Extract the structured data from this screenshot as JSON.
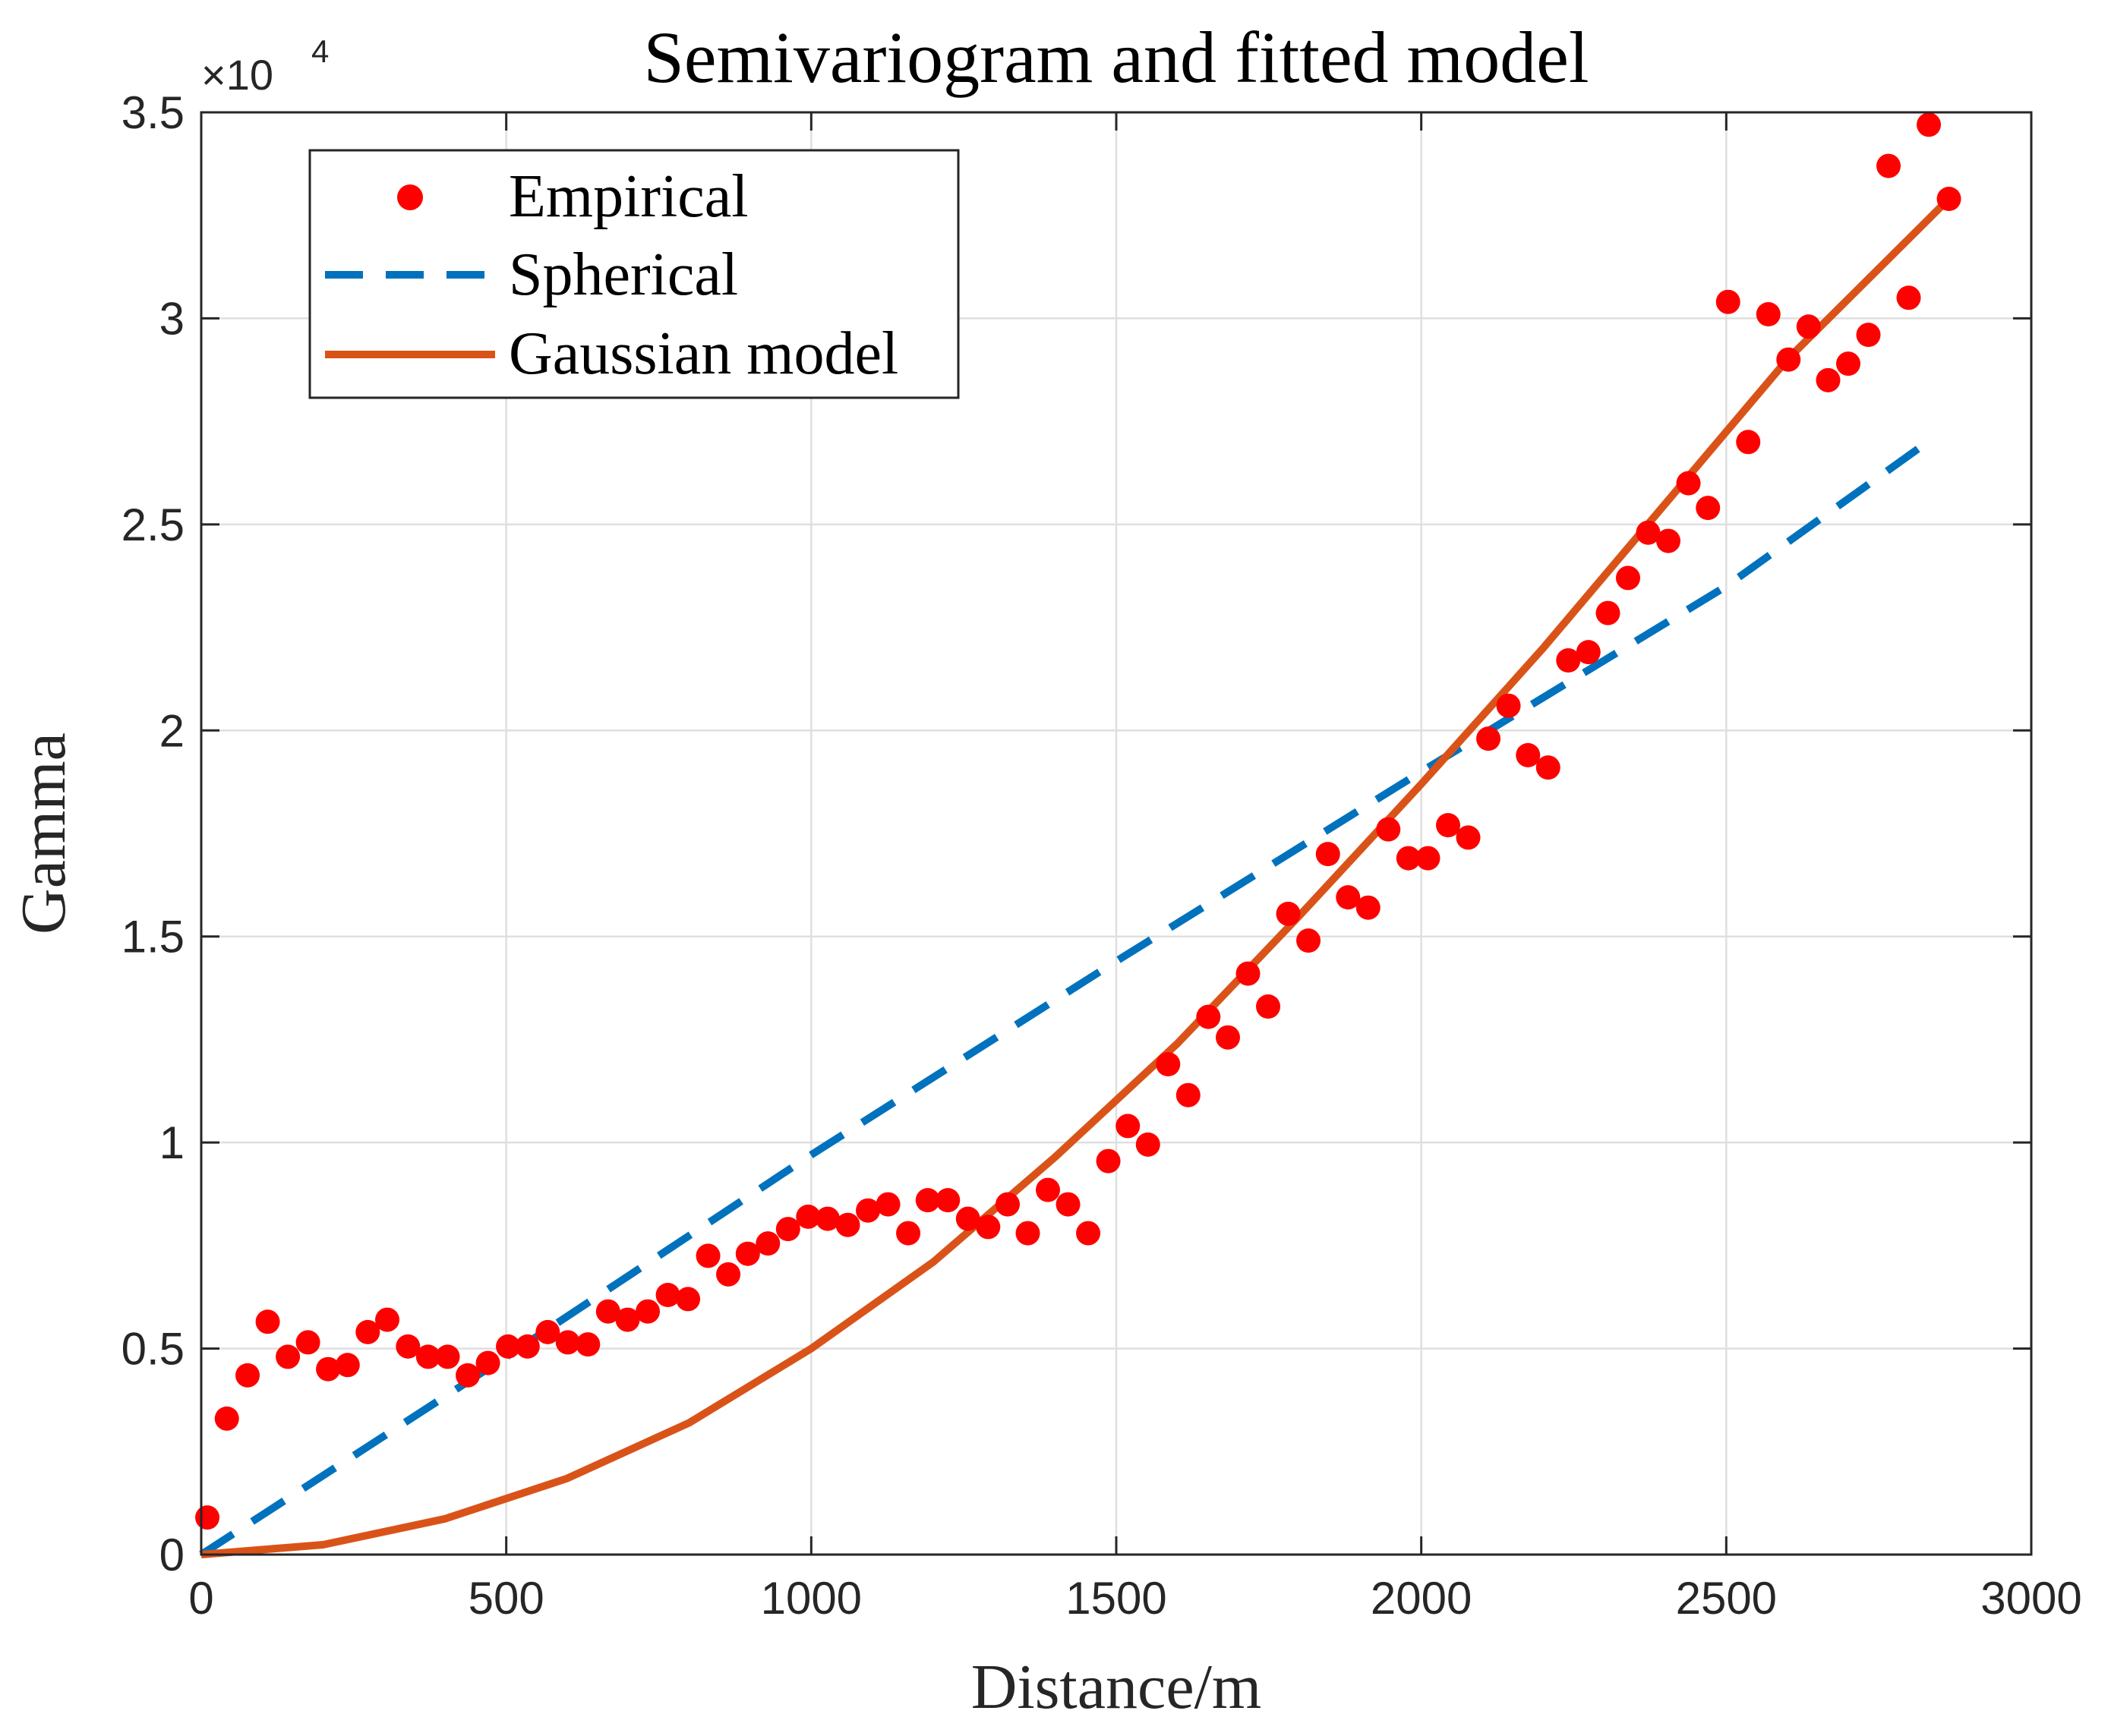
{
  "chart_data": {
    "type": "scatter",
    "title": "Semivariogram and fitted model",
    "xlabel": "Distance/m",
    "ylabel": "Gamma",
    "xlim": [
      0,
      3000
    ],
    "ylim": [
      0,
      35000
    ],
    "grid": true,
    "legend_position": "top-left",
    "y_exponent_label": {
      "base": "×10",
      "exponent": "4"
    },
    "x_ticks": [
      0,
      500,
      1000,
      1500,
      2000,
      2500,
      3000
    ],
    "x_tick_labels": [
      "0",
      "500",
      "1000",
      "1500",
      "2000",
      "2500",
      "3000"
    ],
    "y_ticks": [
      0,
      5000,
      10000,
      15000,
      20000,
      25000,
      30000,
      35000
    ],
    "y_tick_labels": [
      "0",
      "0.5",
      "1",
      "1.5",
      "2",
      "2.5",
      "3",
      "3.5"
    ],
    "colors": {
      "empirical": "#ff0000",
      "spherical": "#0072bd",
      "gaussian": "#d95319"
    },
    "series": [
      {
        "name": "Empirical",
        "style": "markers",
        "x": [
          10,
          42,
          76,
          109,
          142,
          175,
          208,
          240,
          273,
          305,
          339,
          372,
          404,
          437,
          470,
          503,
          535,
          568,
          601,
          634,
          667,
          699,
          732,
          765,
          798,
          831,
          864,
          896,
          929,
          962,
          995,
          1027,
          1060,
          1093,
          1126,
          1159,
          1191,
          1224,
          1257,
          1290,
          1322,
          1355,
          1388,
          1421,
          1454,
          1487,
          1519,
          1552,
          1585,
          1618,
          1651,
          1683,
          1716,
          1749,
          1782,
          1815,
          1847,
          1880,
          1913,
          1946,
          1979,
          2011,
          2044,
          2077,
          2110,
          2143,
          2175,
          2208,
          2241,
          2274,
          2306,
          2339,
          2372,
          2405,
          2438,
          2470,
          2503,
          2536,
          2569,
          2602,
          2635,
          2667,
          2700,
          2733,
          2766,
          2799,
          2832,
          2865
        ],
        "y": [
          900,
          3300,
          4350,
          5650,
          4800,
          5150,
          4500,
          4600,
          5400,
          5700,
          5050,
          4800,
          4800,
          4350,
          4650,
          5050,
          5050,
          5400,
          5150,
          5100,
          5900,
          5700,
          5900,
          6300,
          6200,
          7250,
          6800,
          7300,
          7550,
          7900,
          8200,
          8150,
          8000,
          8350,
          8500,
          7800,
          8600,
          8600,
          8150,
          7950,
          8500,
          7800,
          8850,
          8500,
          7800,
          9550,
          10400,
          9950,
          11900,
          11150,
          13050,
          12550,
          14100,
          13300,
          15550,
          14900,
          17000,
          15950,
          15700,
          17600,
          16900,
          16900,
          17700,
          17400,
          19800,
          20600,
          19400,
          19100,
          21700,
          21900,
          22850,
          23700,
          24800,
          24600,
          26000,
          25400,
          30400,
          27000,
          30100,
          29000,
          29800,
          28500,
          28900,
          29600,
          33700,
          30500,
          34700,
          32900
        ]
      },
      {
        "name": "Spherical",
        "style": "dashed",
        "x": [
          0,
          500,
          1000,
          1500,
          2000,
          2500,
          2830
        ],
        "y": [
          0,
          4800,
          9700,
          14400,
          19000,
          23500,
          27000
        ]
      },
      {
        "name": "Gaussian model",
        "style": "solid",
        "x": [
          0,
          200,
          400,
          600,
          800,
          1000,
          1200,
          1400,
          1600,
          1800,
          2000,
          2200,
          2400,
          2600,
          2865
        ],
        "y": [
          0,
          240,
          870,
          1850,
          3200,
          5000,
          7100,
          9650,
          12400,
          15500,
          18700,
          22000,
          25500,
          29000,
          32900
        ]
      }
    ]
  }
}
